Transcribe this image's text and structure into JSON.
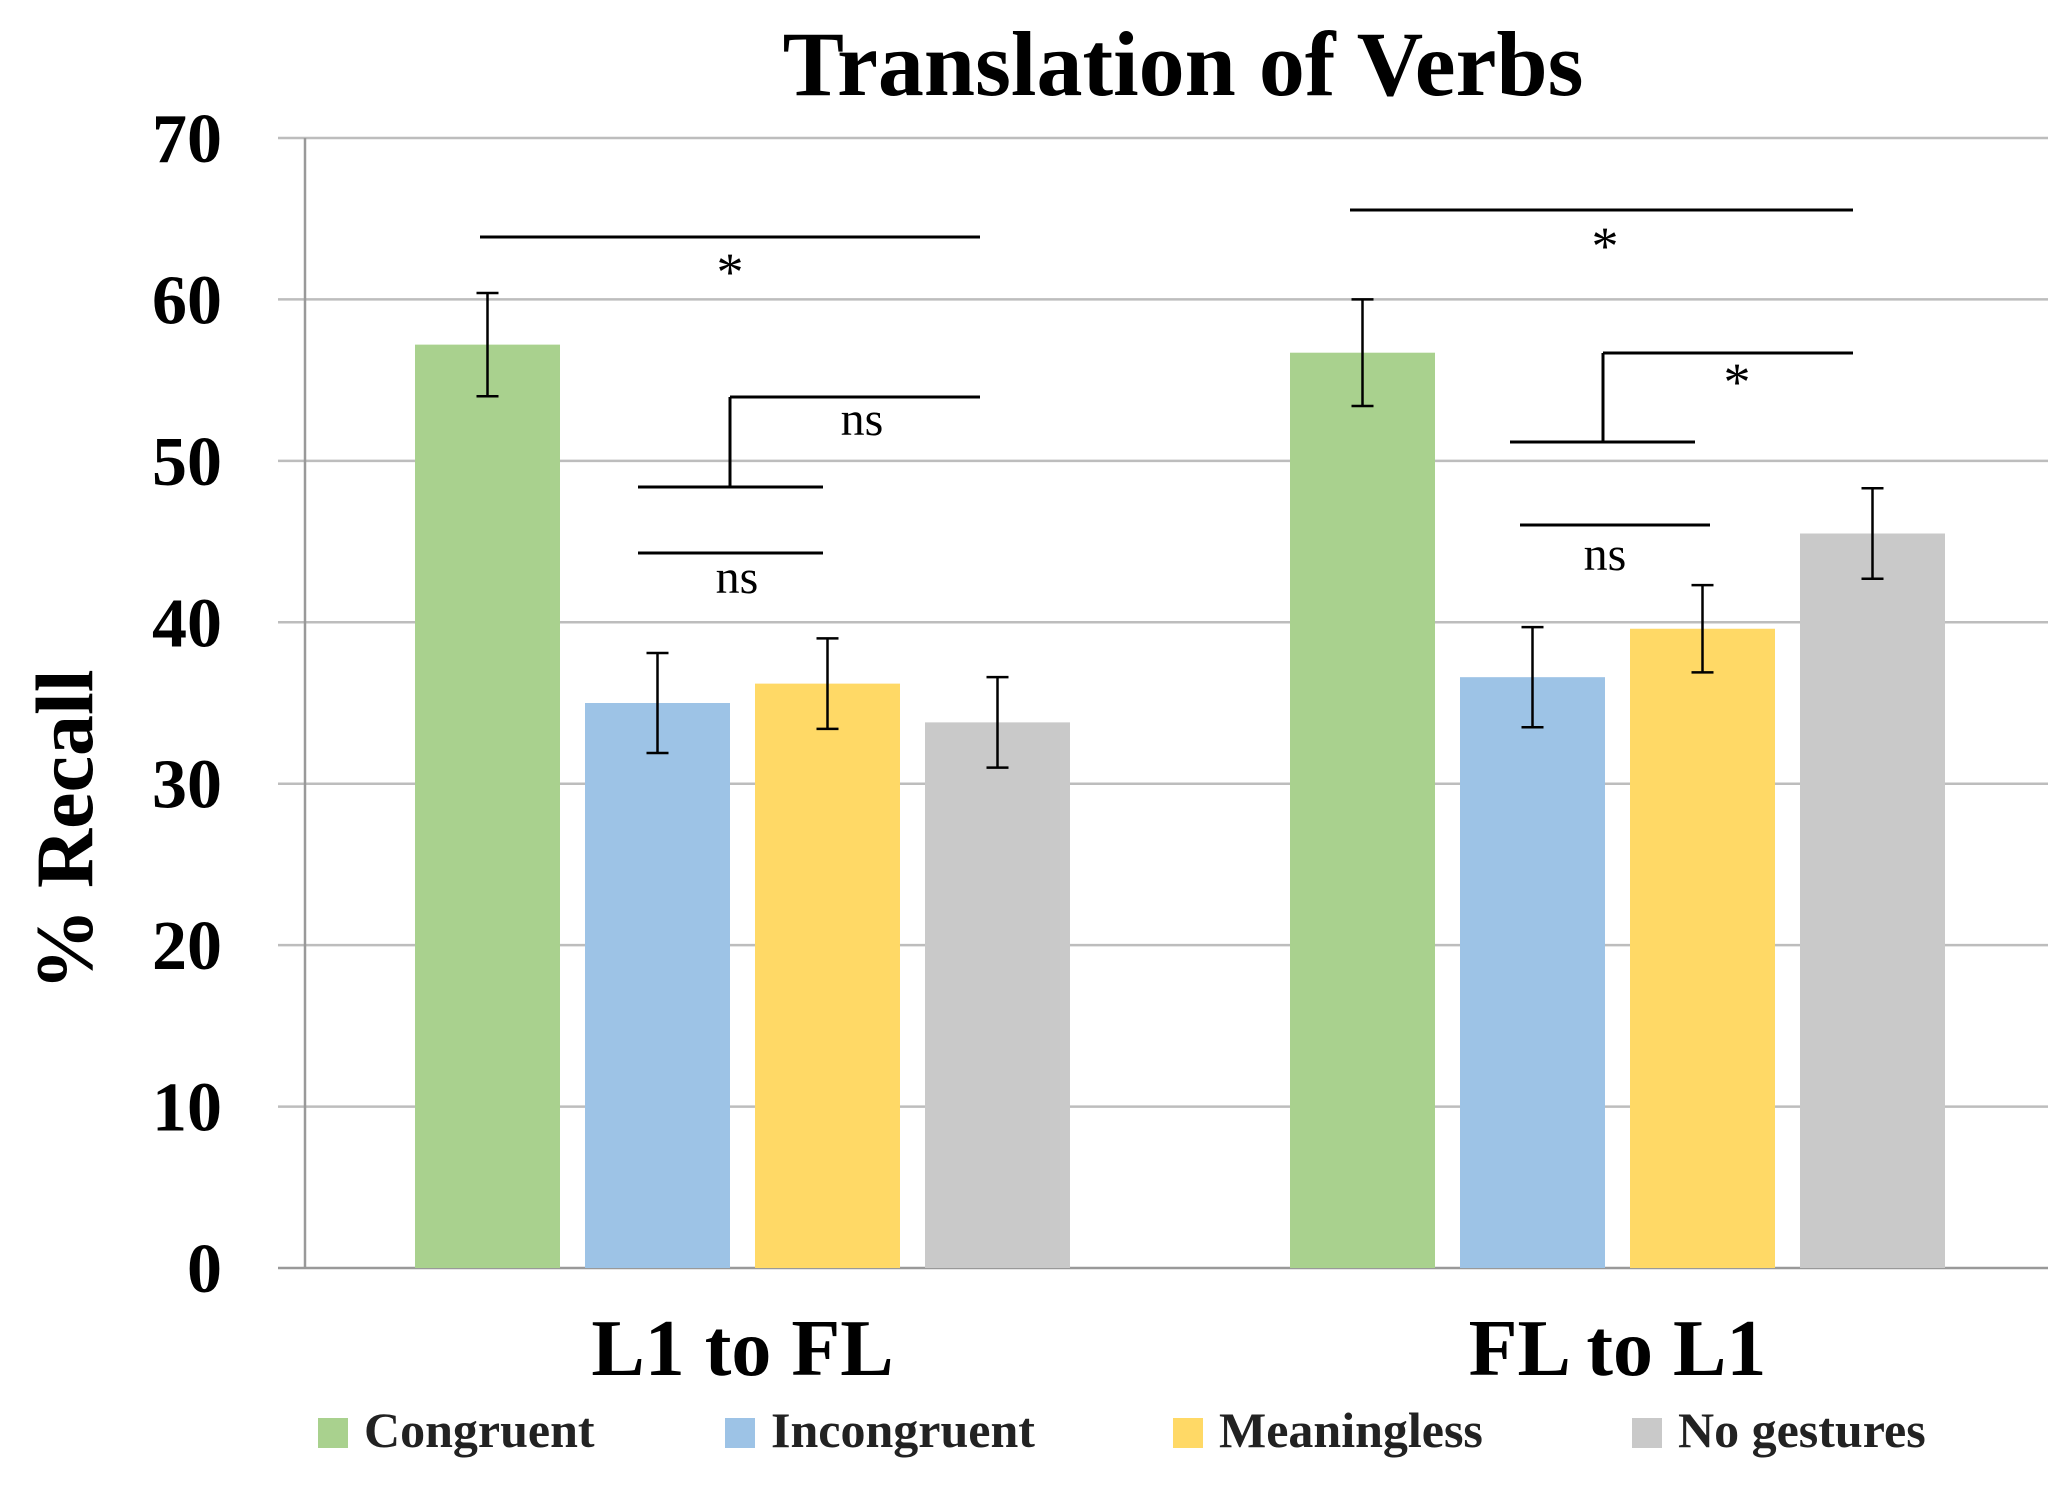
{
  "chart_data": {
    "type": "bar",
    "title": "Translation of Verbs",
    "xlabel": "",
    "ylabel": "% Recall",
    "ylim": [
      0,
      70
    ],
    "yticks": [
      "0",
      "10",
      "20",
      "30",
      "40",
      "50",
      "60",
      "70"
    ],
    "categories": [
      "L1 to FL",
      "FL to L1"
    ],
    "series": [
      {
        "name": "Congruent",
        "color": "#a9d18e",
        "values": [
          57.2,
          56.7
        ],
        "errors": [
          3.2,
          3.3
        ]
      },
      {
        "name": "Incongruent",
        "color": "#9dc3e6",
        "values": [
          35.0,
          36.6
        ],
        "errors": [
          3.1,
          3.1
        ]
      },
      {
        "name": "Meaningless",
        "color": "#ffd966",
        "values": [
          36.2,
          39.6
        ],
        "errors": [
          2.8,
          2.7
        ]
      },
      {
        "name": "No gestures",
        "color": "#c9c9c9",
        "values": [
          33.8,
          45.5
        ],
        "errors": [
          2.8,
          2.8
        ]
      }
    ],
    "legend_position": "bottom",
    "annotations": {
      "sig_star": "*",
      "sig_ns": "ns"
    }
  }
}
